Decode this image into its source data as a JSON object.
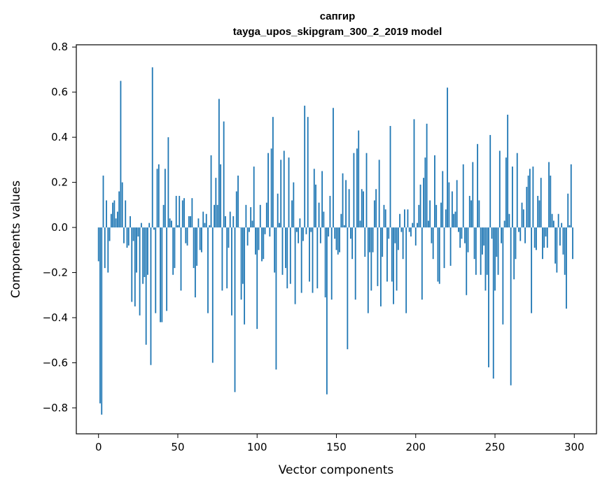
{
  "chart_data": {
    "type": "bar",
    "title": "сапгир",
    "subtitle": "tayga_upos_skipgram_300_2_2019 model",
    "xlabel": "Vector components",
    "ylabel": "Components values",
    "xlim": [
      -14,
      314
    ],
    "ylim": [
      -0.915,
      0.81
    ],
    "xticks": [
      0,
      50,
      100,
      150,
      200,
      250,
      300
    ],
    "yticks": [
      -0.8,
      -0.6,
      -0.4,
      -0.2,
      0.0,
      0.2,
      0.4,
      0.6,
      0.8
    ],
    "ytick_labels": [
      "−0.8",
      "−0.6",
      "−0.4",
      "−0.2",
      "0.0",
      "0.2",
      "0.4",
      "0.6",
      "0.8"
    ],
    "bar_color": "#1f77b4",
    "x_start": 0,
    "values": [
      -0.15,
      -0.78,
      -0.83,
      0.23,
      -0.18,
      0.12,
      -0.2,
      -0.06,
      0.06,
      0.11,
      0.12,
      0.04,
      0.07,
      0.16,
      0.65,
      0.2,
      -0.07,
      0.12,
      -0.09,
      -0.08,
      0.05,
      -0.33,
      -0.06,
      -0.35,
      -0.2,
      -0.04,
      -0.39,
      0.02,
      -0.25,
      -0.22,
      -0.52,
      -0.21,
      0.02,
      -0.61,
      0.71,
      -0.01,
      -0.38,
      0.26,
      0.28,
      -0.42,
      -0.42,
      0.1,
      0.26,
      -0.37,
      0.4,
      0.04,
      0.03,
      -0.21,
      -0.18,
      0.14,
      0.01,
      0.14,
      -0.28,
      0.12,
      0.13,
      -0.07,
      -0.08,
      0.05,
      0.05,
      0.13,
      -0.18,
      -0.31,
      -0.17,
      0.04,
      -0.1,
      -0.11,
      0.07,
      0.02,
      0.06,
      -0.38,
      0.01,
      0.32,
      -0.6,
      0.1,
      0.22,
      0.1,
      0.57,
      0.28,
      -0.28,
      0.47,
      0.05,
      -0.27,
      -0.09,
      0.07,
      -0.39,
      0.05,
      -0.73,
      0.16,
      0.23,
      0.0,
      -0.32,
      -0.25,
      -0.43,
      0.1,
      -0.08,
      -0.02,
      0.09,
      0.03,
      0.27,
      -0.12,
      -0.45,
      -0.1,
      0.1,
      -0.15,
      -0.14,
      -0.03,
      0.11,
      0.33,
      -0.04,
      0.35,
      0.49,
      -0.2,
      -0.63,
      0.15,
      0.02,
      0.3,
      -0.21,
      0.34,
      -0.18,
      -0.27,
      0.31,
      -0.25,
      0.12,
      0.2,
      -0.34,
      -0.02,
      -0.07,
      0.04,
      -0.29,
      -0.06,
      0.54,
      -0.03,
      0.49,
      -0.24,
      -0.02,
      -0.29,
      0.26,
      0.19,
      -0.27,
      0.11,
      -0.07,
      0.25,
      0.07,
      -0.31,
      -0.74,
      -0.04,
      0.14,
      -0.32,
      0.53,
      -0.05,
      -0.1,
      -0.12,
      -0.11,
      0.06,
      0.24,
      0.01,
      0.21,
      -0.54,
      0.17,
      -0.05,
      -0.14,
      0.33,
      -0.32,
      0.35,
      0.43,
      0.03,
      0.17,
      0.16,
      -0.13,
      0.33,
      -0.38,
      -0.11,
      -0.28,
      -0.11,
      0.12,
      0.17,
      -0.26,
      0.3,
      -0.35,
      -0.13,
      0.1,
      0.08,
      -0.24,
      -0.05,
      0.45,
      -0.24,
      -0.34,
      -0.07,
      -0.28,
      -0.1,
      0.06,
      -0.02,
      -0.14,
      0.08,
      -0.38,
      0.08,
      -0.02,
      -0.04,
      0.02,
      0.48,
      -0.08,
      0.02,
      0.1,
      0.19,
      -0.32,
      0.22,
      0.31,
      0.46,
      0.03,
      0.12,
      -0.07,
      -0.14,
      0.32,
      0.1,
      -0.24,
      -0.25,
      0.11,
      0.25,
      -0.18,
      0.08,
      0.62,
      0.2,
      -0.17,
      0.16,
      0.06,
      0.07,
      0.21,
      -0.02,
      -0.09,
      -0.05,
      0.28,
      -0.07,
      -0.3,
      -0.11,
      0.14,
      0.12,
      0.29,
      -0.14,
      -0.21,
      0.37,
      0.12,
      -0.21,
      -0.12,
      -0.08,
      -0.28,
      -0.21,
      -0.62,
      0.41,
      -0.05,
      -0.67,
      -0.28,
      -0.13,
      -0.21,
      0.34,
      -0.07,
      -0.43,
      0.03,
      0.31,
      0.5,
      0.06,
      -0.7,
      0.27,
      -0.23,
      -0.14,
      0.33,
      -0.02,
      -0.06,
      0.11,
      0.08,
      -0.07,
      0.18,
      0.23,
      0.26,
      -0.38,
      0.27,
      -0.09,
      -0.1,
      0.14,
      0.12,
      0.22,
      -0.14,
      -0.09,
      -0.04,
      -0.09,
      0.29,
      0.23,
      0.06,
      0.03,
      -0.16,
      -0.2,
      0.06,
      -0.08,
      0.02,
      -0.12,
      -0.21,
      -0.36,
      0.15,
      0.01,
      0.28,
      -0.14
    ]
  }
}
